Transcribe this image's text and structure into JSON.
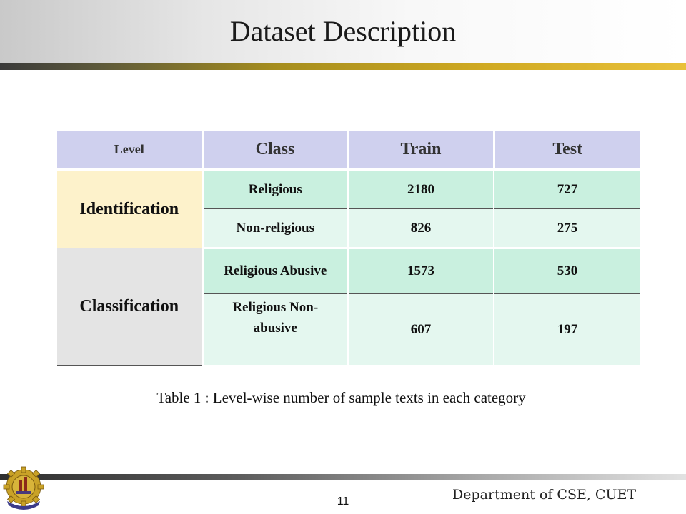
{
  "slide": {
    "title": "Dataset Description",
    "caption": "Table 1 : Level-wise number of sample texts in each category",
    "page_number": "11",
    "footer": "Department of CSE, CUET",
    "logo_icon": "cuet-gear-logo-icon"
  },
  "table": {
    "headers": [
      "Level",
      "Class",
      "Train",
      "Test"
    ],
    "groups": [
      {
        "level": "Identification",
        "rows": [
          {
            "class": "Religious",
            "train": "2180",
            "test": "727"
          },
          {
            "class": "Non-religious",
            "train": "826",
            "test": "275"
          }
        ]
      },
      {
        "level": "Classification",
        "rows": [
          {
            "class": "Religious Abusive",
            "train": "1573",
            "test": "530"
          },
          {
            "class": "Religious Non-abusive",
            "train": "607",
            "test": "197"
          }
        ]
      }
    ]
  },
  "colors": {
    "header_bg": "#cfd0ee",
    "identification_bg": "#fdf2cb",
    "classification_bg": "#e4e4e4",
    "row_dark_green": "#c9f0df",
    "row_light_green": "#e4f7ef",
    "gold_rule": "#cfa922"
  }
}
